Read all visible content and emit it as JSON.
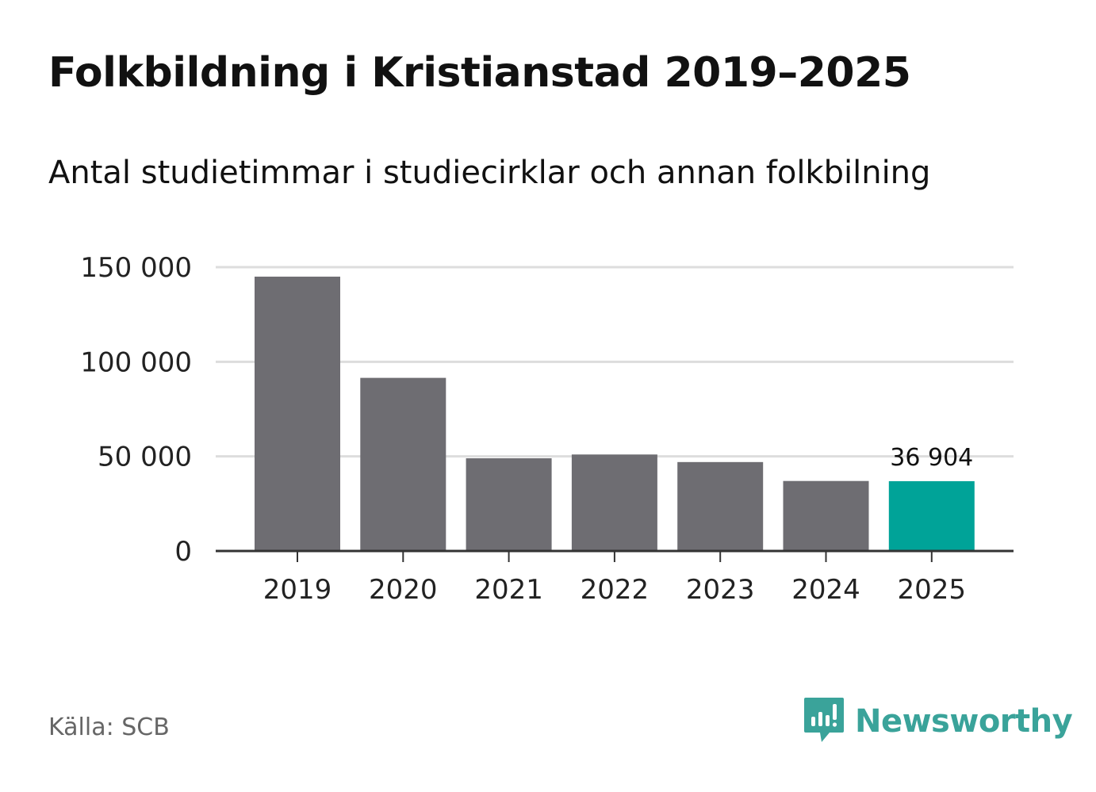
{
  "title": "Folkbildning i Kristianstad 2019–2025",
  "subtitle": "Antal studietimmar i studiecirklar och annan folkbilning",
  "source": "Källa: SCB",
  "brand": {
    "name": "Newsworthy",
    "icon": "newsworthy-logo-icon"
  },
  "colors": {
    "bar": "#6e6d72",
    "highlight": "#00a398",
    "grid": "#dddddd",
    "axis": "#333333",
    "brand": "#3aa39a"
  },
  "chart_data": {
    "type": "bar",
    "title": "Folkbildning i Kristianstad 2019–2025",
    "subtitle": "Antal studietimmar i studiecirklar och annan folkbilning",
    "xlabel": "",
    "ylabel": "",
    "categories": [
      "2019",
      "2020",
      "2021",
      "2022",
      "2023",
      "2024",
      "2025"
    ],
    "values": [
      145000,
      91500,
      49000,
      51000,
      47000,
      37000,
      36904
    ],
    "highlight_index": 6,
    "data_label": "36 904",
    "ylim": [
      0,
      150000
    ],
    "yticks": [
      0,
      50000,
      100000,
      150000
    ],
    "ytick_labels": [
      "0",
      "50 000",
      "100 000",
      "150 000"
    ],
    "grid": true,
    "legend": "none"
  }
}
